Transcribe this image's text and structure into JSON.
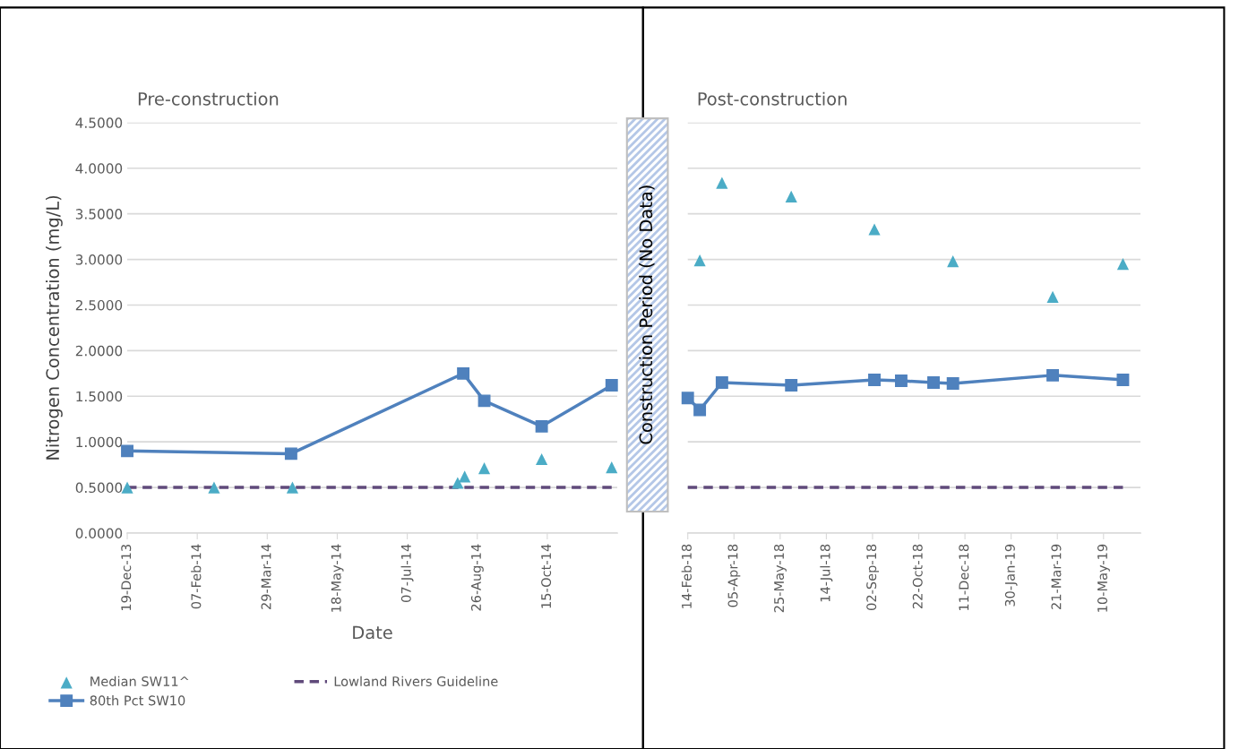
{
  "chart_data": [
    {
      "type": "scatter",
      "title": "Pre-construction",
      "xlabel": "Date",
      "ylabel": "Nitrogen Concentration (mg/L)",
      "xlim": [
        "2013-12-19",
        "2014-12-04"
      ],
      "xticks": [
        {
          "value": "2013-12-19",
          "label": "19-Dec-13"
        },
        {
          "value": "2014-02-07",
          "label": "07-Feb-14"
        },
        {
          "value": "2014-03-29",
          "label": "29-Mar-14"
        },
        {
          "value": "2014-05-18",
          "label": "18-May-14"
        },
        {
          "value": "2014-07-07",
          "label": "07-Jul-14"
        },
        {
          "value": "2014-08-26",
          "label": "26-Aug-14"
        },
        {
          "value": "2014-10-15",
          "label": "15-Oct-14"
        }
      ],
      "ylim": [
        0,
        4.5
      ],
      "yticks": [
        {
          "value": 0,
          "label": "0.0000"
        },
        {
          "value": 0.5,
          "label": "0.5000"
        },
        {
          "value": 1,
          "label": "1.0000"
        },
        {
          "value": 1.5,
          "label": "1.5000"
        },
        {
          "value": 2,
          "label": "2.0000"
        },
        {
          "value": 2.5,
          "label": "2.5000"
        },
        {
          "value": 3,
          "label": "3.0000"
        },
        {
          "value": 3.5,
          "label": "3.5000"
        },
        {
          "value": 4,
          "label": "4.0000"
        },
        {
          "value": 4.5,
          "label": "4.5000"
        }
      ],
      "grid": "y",
      "legend": "bottom",
      "series": [
        {
          "name": "Median SW11^",
          "marker": "triangle",
          "color": "#4bacc6",
          "x": [
            "2013-12-19",
            "2014-02-19",
            "2014-04-16",
            "2014-08-12",
            "2014-08-17",
            "2014-08-31",
            "2014-10-11",
            "2014-11-30"
          ],
          "values": [
            0.5,
            0.5,
            0.5,
            0.55,
            0.62,
            0.71,
            0.81,
            0.72
          ]
        },
        {
          "name": "80th Pct SW10",
          "type": "line",
          "marker": "square",
          "line_style": "solid",
          "color": "#4f81bd",
          "x": [
            "2013-12-19",
            "2014-04-15",
            "2014-08-16",
            "2014-08-31",
            "2014-10-11",
            "2014-11-30"
          ],
          "values": [
            0.9,
            0.87,
            1.75,
            1.45,
            1.17,
            1.62
          ]
        },
        {
          "name": "Lowland Rivers Guideline",
          "type": "line",
          "marker": "none",
          "line_style": "dashed",
          "color": "#604a7b",
          "x": [
            "2013-12-19",
            "2014-11-30"
          ],
          "values": [
            0.5,
            0.5
          ]
        }
      ]
    },
    {
      "type": "scatter",
      "title": "Post-construction",
      "tick_labels": "x",
      "annotations": [
        "Construction Period (No Data)"
      ],
      "xlim": [
        "2018-02-14",
        "2019-06-19"
      ],
      "xticks": [
        {
          "value": "2018-02-14",
          "label": "14-Feb-18"
        },
        {
          "value": "2018-04-05",
          "label": "05-Apr-18"
        },
        {
          "value": "2018-05-25",
          "label": "25-May-18"
        },
        {
          "value": "2018-07-14",
          "label": "14-Jul-18"
        },
        {
          "value": "2018-09-02",
          "label": "02-Sep-18"
        },
        {
          "value": "2018-10-22",
          "label": "22-Oct-18"
        },
        {
          "value": "2018-12-11",
          "label": "11-Dec-18"
        },
        {
          "value": "2019-01-30",
          "label": "30-Jan-19"
        },
        {
          "value": "2019-03-21",
          "label": "21-Mar-19"
        },
        {
          "value": "2019-05-10",
          "label": "10-May-19"
        }
      ],
      "ylim": [
        0,
        4.5
      ],
      "yticks": [
        0,
        0.5,
        1,
        1.5,
        2,
        2.5,
        3,
        3.5,
        4,
        4.5
      ],
      "grid": "y",
      "series": [
        {
          "marker": "triangle",
          "color": "#4bacc6",
          "x": [
            "2018-02-27",
            "2018-03-23",
            "2018-06-06",
            "2018-09-04",
            "2018-11-28",
            "2019-03-16",
            "2019-05-31"
          ],
          "values": [
            2.99,
            3.84,
            3.69,
            3.33,
            2.98,
            2.59,
            2.95
          ]
        },
        {
          "type": "line",
          "marker": "square",
          "line_style": "solid",
          "color": "#4f81bd",
          "x": [
            "2018-02-14",
            "2018-02-27",
            "2018-03-23",
            "2018-06-06",
            "2018-09-04",
            "2018-10-03",
            "2018-11-07",
            "2018-11-28",
            "2019-03-16",
            "2019-05-31"
          ],
          "values": [
            1.48,
            1.35,
            1.65,
            1.62,
            1.68,
            1.67,
            1.65,
            1.64,
            1.73,
            1.68
          ]
        },
        {
          "type": "line",
          "marker": "none",
          "line_style": "dashed",
          "color": "#604a7b",
          "x": [
            "2018-02-14",
            "2019-05-31"
          ],
          "values": [
            0.5,
            0.5
          ]
        }
      ]
    }
  ]
}
